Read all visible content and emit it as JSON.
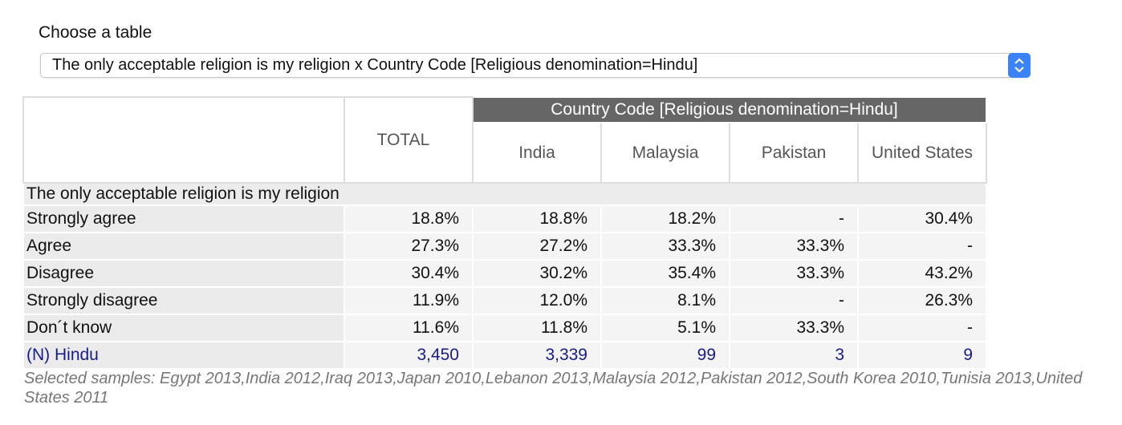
{
  "selector": {
    "label": "Choose a table",
    "selected": "The only acceptable religion is my religion x Country Code [Religious denomination=Hindu]"
  },
  "table": {
    "total_header": "TOTAL",
    "group_header": "Country Code [Religious denomination=Hindu]",
    "columns": [
      "India",
      "Malaysia",
      "Pakistan",
      "United States"
    ],
    "section": "The only acceptable religion is my religion",
    "rows": [
      [
        "Strongly agree",
        "18.8%",
        "18.8%",
        "18.2%",
        "-",
        "30.4%"
      ],
      [
        "Agree",
        "27.3%",
        "27.2%",
        "33.3%",
        "33.3%",
        "-"
      ],
      [
        "Disagree",
        "30.4%",
        "30.2%",
        "35.4%",
        "33.3%",
        "43.2%"
      ],
      [
        "Strongly disagree",
        "11.9%",
        "12.0%",
        "8.1%",
        "-",
        "26.3%"
      ],
      [
        "Don´t know",
        "11.6%",
        "11.8%",
        "5.1%",
        "33.3%",
        "-"
      ]
    ],
    "n_row": [
      "(N) Hindu",
      "3,450",
      "3,339",
      "99",
      "3",
      "9"
    ]
  },
  "footer": "Selected samples: Egypt 2013,India 2012,Iraq 2013,Japan 2010,Lebanon 2013,Malaysia 2012,Pakistan 2012,South Korea 2010,Tunisia 2013,United States 2011"
}
